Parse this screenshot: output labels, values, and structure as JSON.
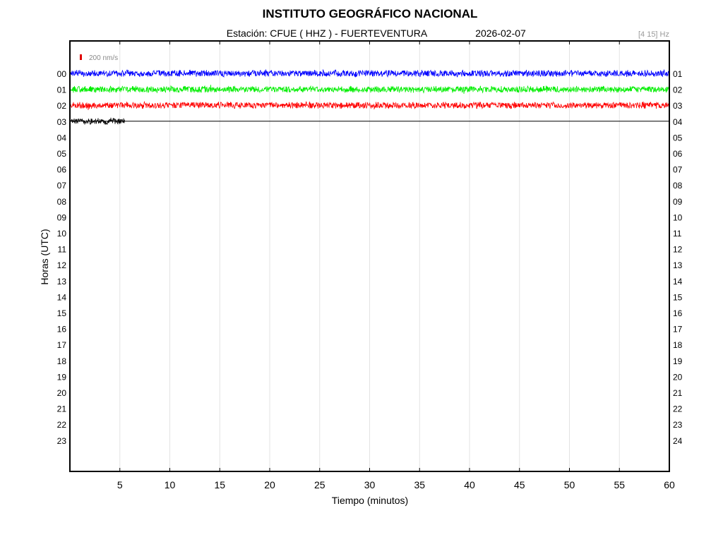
{
  "chart_data": {
    "type": "line",
    "title": "INSTITUTO GEOGRÁFICO NACIONAL",
    "station_label": "Estación:  CFUE ( HHZ ) - FUERTEVENTURA",
    "date": "2026-02-07",
    "frequency_band": "[4 15] Hz",
    "scale_label": "200 nm/s",
    "scale_color": "#e00000",
    "xlabel": "Tiempo (minutos)",
    "ylabel": "Horas (UTC)",
    "xlim": [
      0,
      60
    ],
    "x_ticks": [
      "5",
      "10",
      "15",
      "20",
      "25",
      "30",
      "35",
      "40",
      "45",
      "50",
      "55",
      "60"
    ],
    "y_left_ticks": [
      "00",
      "01",
      "02",
      "03",
      "04",
      "05",
      "06",
      "07",
      "08",
      "09",
      "10",
      "11",
      "12",
      "13",
      "14",
      "15",
      "16",
      "17",
      "18",
      "19",
      "20",
      "21",
      "22",
      "23"
    ],
    "y_right_ticks": [
      "01",
      "02",
      "03",
      "04",
      "05",
      "06",
      "07",
      "08",
      "09",
      "10",
      "11",
      "12",
      "13",
      "14",
      "15",
      "16",
      "17",
      "18",
      "19",
      "20",
      "21",
      "22",
      "23",
      "24"
    ],
    "grid": "vertical",
    "series": [
      {
        "hour": 0,
        "color": "#0000ff",
        "start_min": 0,
        "end_min": 60
      },
      {
        "hour": 1,
        "color": "#00ee00",
        "start_min": 0,
        "end_min": 60
      },
      {
        "hour": 2,
        "color": "#ff0000",
        "start_min": 0,
        "end_min": 60
      },
      {
        "hour": 3,
        "color": "#000000",
        "start_min": 0,
        "end_min": 5.5
      }
    ]
  }
}
